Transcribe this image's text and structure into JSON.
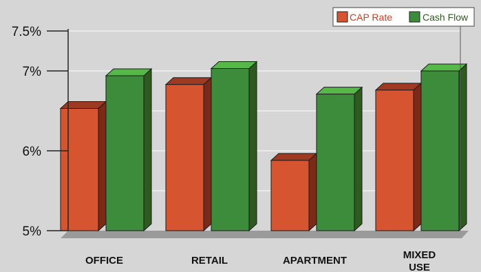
{
  "colors": {
    "background": "#d6d6d6",
    "cap_front": "#d65530",
    "cap_side": "#7a2a16",
    "cap_top": "#9e3a22",
    "cf_front": "#3c8c3c",
    "cf_side": "#2f5a1f",
    "cf_top": "#56b848",
    "legend_text": "#d23a1c"
  },
  "chart_data": {
    "type": "bar",
    "categories": [
      "OFFICE",
      "RETAIL",
      "APARTMENT",
      "MIXED USE"
    ],
    "series": [
      {
        "name": "CAP Rate",
        "values": [
          6.53,
          6.83,
          5.88,
          6.76
        ]
      },
      {
        "name": "Cash Flow",
        "values": [
          6.94,
          7.03,
          6.71,
          7.0
        ]
      }
    ],
    "y_ticks": [
      {
        "value": 5,
        "label": "5%"
      },
      {
        "value": 6,
        "label": "6%"
      },
      {
        "value": 7,
        "label": "7%"
      },
      {
        "value": 7.5,
        "label": "7.5%"
      }
    ],
    "ylim": [
      5,
      7.5
    ],
    "gridlines": [
      5.5,
      6,
      6.5,
      7,
      7.5
    ],
    "legend_position": "top-right"
  }
}
